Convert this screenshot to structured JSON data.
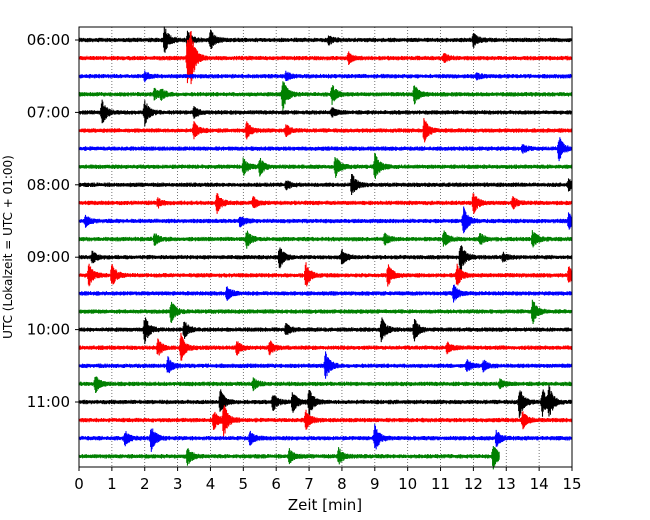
{
  "chart_data": {
    "type": "line",
    "title": "",
    "xlabel": "Zeit  [min]",
    "ylabel": "UTC (Lokalzeit = UTC + 01:00)",
    "xlim": [
      0,
      15
    ],
    "x_ticks": [
      "0",
      "1",
      "2",
      "3",
      "4",
      "5",
      "6",
      "7",
      "8",
      "9",
      "10",
      "11",
      "12",
      "13",
      "14",
      "15"
    ],
    "y_tick_labels": [
      "06:00",
      "07:00",
      "08:00",
      "09:00",
      "10:00",
      "11:00"
    ],
    "grid": {
      "x": true,
      "y": false
    },
    "row_interval_min": 15,
    "start_time": "06:00",
    "colors": [
      "#000000",
      "#ff0000",
      "#0000ff",
      "#008000"
    ],
    "rows": [
      {
        "time": "06:00",
        "end_min": 15,
        "events": [
          [
            2.6,
            1.0
          ],
          [
            3.3,
            0.6
          ],
          [
            4.0,
            0.7
          ],
          [
            7.6,
            0.3
          ],
          [
            12.0,
            0.5
          ]
        ]
      },
      {
        "time": "06:15",
        "end_min": 15,
        "events": [
          [
            3.3,
            1.8
          ],
          [
            3.4,
            1.3
          ],
          [
            8.2,
            0.4
          ],
          [
            11.1,
            0.3
          ]
        ]
      },
      {
        "time": "06:30",
        "end_min": 15,
        "events": [
          [
            2.0,
            0.3
          ],
          [
            6.3,
            0.3
          ],
          [
            12.1,
            0.2
          ]
        ]
      },
      {
        "time": "06:45",
        "end_min": 15,
        "events": [
          [
            2.3,
            0.4
          ],
          [
            2.5,
            0.3
          ],
          [
            6.2,
            1.2
          ],
          [
            7.7,
            0.7
          ],
          [
            10.2,
            0.7
          ]
        ]
      },
      {
        "time": "07:00",
        "end_min": 15,
        "events": [
          [
            0.7,
            0.9
          ],
          [
            2.0,
            0.9
          ],
          [
            3.5,
            0.4
          ],
          [
            7.7,
            0.3
          ]
        ]
      },
      {
        "time": "07:15",
        "end_min": 15,
        "events": [
          [
            3.5,
            0.6
          ],
          [
            5.1,
            0.6
          ],
          [
            6.3,
            0.4
          ],
          [
            10.5,
            0.9
          ]
        ]
      },
      {
        "time": "07:30",
        "end_min": 15,
        "events": [
          [
            14.6,
            0.9
          ],
          [
            13.5,
            0.3
          ]
        ]
      },
      {
        "time": "07:45",
        "end_min": 15,
        "events": [
          [
            5.0,
            0.6
          ],
          [
            5.5,
            0.6
          ],
          [
            7.8,
            0.8
          ],
          [
            9.0,
            1.0
          ]
        ]
      },
      {
        "time": "08:00",
        "end_min": 15,
        "events": [
          [
            8.3,
            0.8
          ],
          [
            6.3,
            0.3
          ],
          [
            14.9,
            0.4
          ]
        ]
      },
      {
        "time": "08:15",
        "end_min": 15,
        "events": [
          [
            2.4,
            0.3
          ],
          [
            4.2,
            0.7
          ],
          [
            5.3,
            0.4
          ],
          [
            12.0,
            0.8
          ],
          [
            13.2,
            0.4
          ]
        ]
      },
      {
        "time": "08:30",
        "end_min": 15,
        "events": [
          [
            0.2,
            0.4
          ],
          [
            4.9,
            0.4
          ],
          [
            11.7,
            1.0
          ],
          [
            14.9,
            0.6
          ]
        ]
      },
      {
        "time": "08:45",
        "end_min": 15,
        "events": [
          [
            2.3,
            0.4
          ],
          [
            5.1,
            0.6
          ],
          [
            9.3,
            0.4
          ],
          [
            11.1,
            0.6
          ],
          [
            12.2,
            0.4
          ],
          [
            13.8,
            0.6
          ]
        ]
      },
      {
        "time": "09:00",
        "end_min": 15,
        "events": [
          [
            0.4,
            0.4
          ],
          [
            6.1,
            0.8
          ],
          [
            8.0,
            0.5
          ],
          [
            11.6,
            1.1
          ],
          [
            12.9,
            0.3
          ]
        ]
      },
      {
        "time": "09:15",
        "end_min": 15,
        "events": [
          [
            0.3,
            0.8
          ],
          [
            1.0,
            0.8
          ],
          [
            6.9,
            0.9
          ],
          [
            9.4,
            0.8
          ],
          [
            11.5,
            0.8
          ],
          [
            14.9,
            0.6
          ]
        ]
      },
      {
        "time": "09:30",
        "end_min": 15,
        "events": [
          [
            4.5,
            0.5
          ],
          [
            11.4,
            0.6
          ]
        ]
      },
      {
        "time": "09:45",
        "end_min": 15,
        "events": [
          [
            2.8,
            0.8
          ],
          [
            13.8,
            0.9
          ]
        ]
      },
      {
        "time": "10:00",
        "end_min": 15,
        "events": [
          [
            2.0,
            1.0
          ],
          [
            3.2,
            0.6
          ],
          [
            6.3,
            0.4
          ],
          [
            9.2,
            0.9
          ],
          [
            10.2,
            0.8
          ]
        ]
      },
      {
        "time": "10:15",
        "end_min": 15,
        "events": [
          [
            2.4,
            0.6
          ],
          [
            3.1,
            1.0
          ],
          [
            4.8,
            0.5
          ],
          [
            5.8,
            0.5
          ],
          [
            11.2,
            0.4
          ]
        ]
      },
      {
        "time": "10:30",
        "end_min": 15,
        "events": [
          [
            2.7,
            0.6
          ],
          [
            7.5,
            1.0
          ],
          [
            11.8,
            0.4
          ],
          [
            12.3,
            0.4
          ]
        ]
      },
      {
        "time": "10:45",
        "end_min": 15,
        "events": [
          [
            0.5,
            0.6
          ],
          [
            5.3,
            0.4
          ],
          [
            12.8,
            0.3
          ]
        ]
      },
      {
        "time": "11:00",
        "end_min": 15,
        "events": [
          [
            4.3,
            0.9
          ],
          [
            5.9,
            0.6
          ],
          [
            6.5,
            0.8
          ],
          [
            7.0,
            1.0
          ],
          [
            13.4,
            1.1
          ],
          [
            14.1,
            1.0
          ],
          [
            14.3,
            1.0
          ]
        ]
      },
      {
        "time": "11:15",
        "end_min": 15,
        "events": [
          [
            4.1,
            0.7
          ],
          [
            4.4,
            1.2
          ],
          [
            6.9,
            0.7
          ],
          [
            13.5,
            0.6
          ]
        ]
      },
      {
        "time": "11:30",
        "end_min": 15,
        "events": [
          [
            1.4,
            0.5
          ],
          [
            2.2,
            0.9
          ],
          [
            5.2,
            0.5
          ],
          [
            9.0,
            1.0
          ],
          [
            12.7,
            0.6
          ]
        ]
      },
      {
        "time": "11:45",
        "end_min": 12.8,
        "events": [
          [
            3.3,
            0.6
          ],
          [
            6.4,
            0.5
          ],
          [
            7.9,
            0.6
          ],
          [
            12.6,
            0.9
          ]
        ]
      }
    ]
  }
}
